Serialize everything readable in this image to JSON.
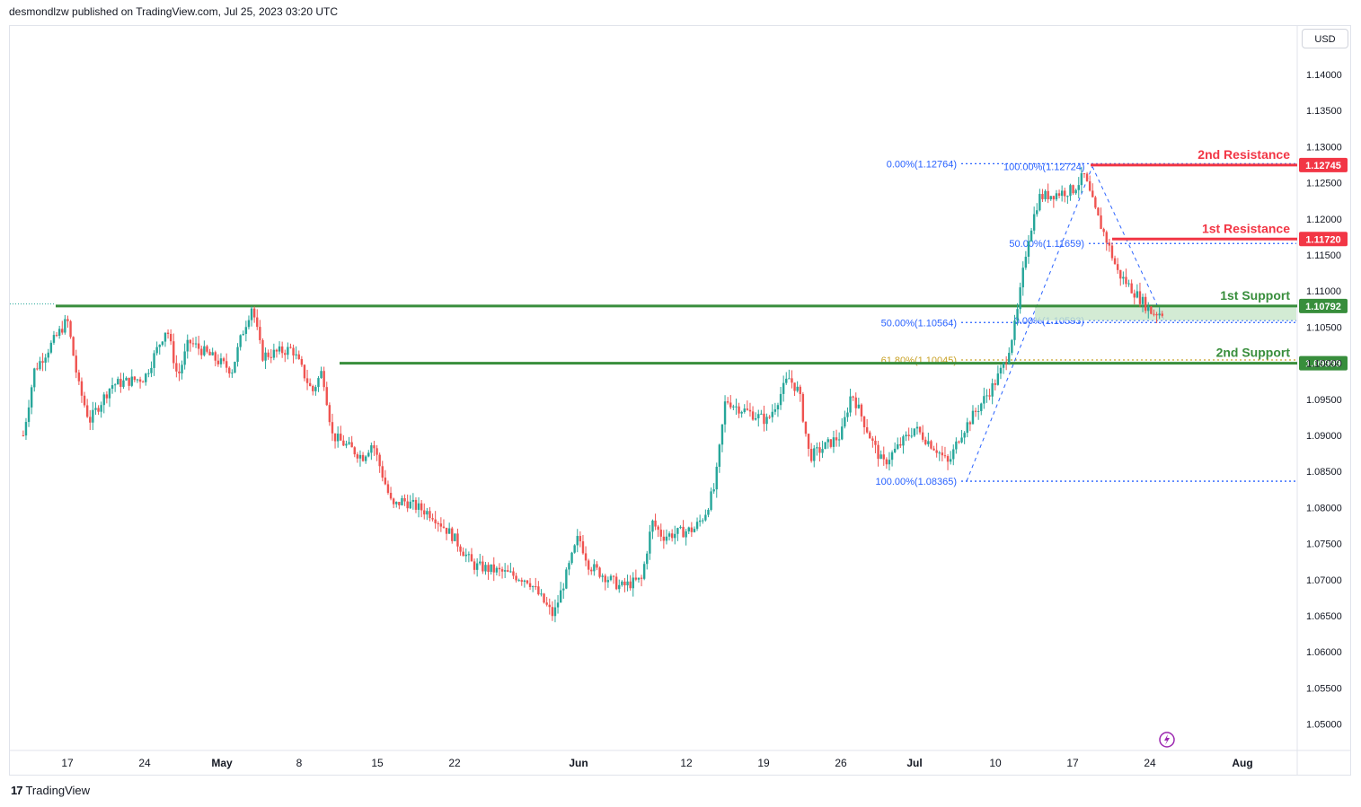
{
  "header": {
    "published": "desmondlzw published on TradingView.com, Jul 25, 2023 03:20 UTC"
  },
  "currency": "USD",
  "footer": {
    "brand": "TradingView",
    "logo_glyph": "17"
  },
  "colors": {
    "up": "#26a69a",
    "down": "#ef5350",
    "support": "#388e3c",
    "resistance": "#f23645",
    "fib": "#2962ff",
    "fib_gold": "#c9a227",
    "zone": "#c8e6c9"
  },
  "chart_data": {
    "type": "candlestick",
    "y_axis": {
      "min": 1.045,
      "max": 1.145,
      "ticks": [
        "1.14000",
        "1.13500",
        "1.13000",
        "1.12500",
        "1.12000",
        "1.11500",
        "1.11000",
        "1.10500",
        "1.10000",
        "1.09500",
        "1.09000",
        "1.08500",
        "1.08000",
        "1.07500",
        "1.07000",
        "1.06500",
        "1.06000",
        "1.05500",
        "1.05000"
      ]
    },
    "x_axis": {
      "ticks": [
        "17",
        "24",
        "May",
        "8",
        "15",
        "22",
        "Jun",
        "12",
        "19",
        "26",
        "Jul",
        "10",
        "17",
        "24",
        "Aug"
      ]
    },
    "price_path": [
      {
        "date": "Apr 13",
        "price": 1.09
      },
      {
        "date": "Apr 14",
        "price": 1.099
      },
      {
        "date": "Apr 17",
        "price": 1.106
      },
      {
        "date": "Apr 18",
        "price": 1.097
      },
      {
        "date": "Apr 19",
        "price": 1.092
      },
      {
        "date": "Apr 21",
        "price": 1.097
      },
      {
        "date": "Apr 24",
        "price": 1.098
      },
      {
        "date": "Apr 26",
        "price": 1.105
      },
      {
        "date": "Apr 27",
        "price": 1.098
      },
      {
        "date": "Apr 28",
        "price": 1.103
      },
      {
        "date": "May 2",
        "price": 1.099
      },
      {
        "date": "May 3",
        "price": 1.104
      },
      {
        "date": "May 4",
        "price": 1.108
      },
      {
        "date": "May 5",
        "price": 1.101
      },
      {
        "date": "May 8",
        "price": 1.102
      },
      {
        "date": "May 10",
        "price": 1.096
      },
      {
        "date": "May 11",
        "price": 1.099
      },
      {
        "date": "May 12",
        "price": 1.09
      },
      {
        "date": "May 15",
        "price": 1.087
      },
      {
        "date": "May 16",
        "price": 1.089
      },
      {
        "date": "May 18",
        "price": 1.08
      },
      {
        "date": "May 19",
        "price": 1.081
      },
      {
        "date": "May 22",
        "price": 1.079
      },
      {
        "date": "May 24",
        "price": 1.076
      },
      {
        "date": "May 26",
        "price": 1.072
      },
      {
        "date": "May 29",
        "price": 1.071
      },
      {
        "date": "May 30",
        "price": 1.07
      },
      {
        "date": "May 31",
        "price": 1.065
      },
      {
        "date": "Jun 1",
        "price": 1.076
      },
      {
        "date": "Jun 2",
        "price": 1.072
      },
      {
        "date": "Jun 5",
        "price": 1.069
      },
      {
        "date": "Jun 7",
        "price": 1.07
      },
      {
        "date": "Jun 8",
        "price": 1.078
      },
      {
        "date": "Jun 9",
        "price": 1.076
      },
      {
        "date": "Jun 12",
        "price": 1.077
      },
      {
        "date": "Jun 13",
        "price": 1.079
      },
      {
        "date": "Jun 14",
        "price": 1.083
      },
      {
        "date": "Jun 15",
        "price": 1.095
      },
      {
        "date": "Jun 16",
        "price": 1.094
      },
      {
        "date": "Jun 19",
        "price": 1.092
      },
      {
        "date": "Jun 21",
        "price": 1.098
      },
      {
        "date": "Jun 22",
        "price": 1.096
      },
      {
        "date": "Jun 23",
        "price": 1.087
      },
      {
        "date": "Jun 26",
        "price": 1.09
      },
      {
        "date": "Jun 27",
        "price": 1.096
      },
      {
        "date": "Jun 29",
        "price": 1.089
      },
      {
        "date": "Jun 30",
        "price": 1.086
      },
      {
        "date": "Jul 3",
        "price": 1.091
      },
      {
        "date": "Jul 5",
        "price": 1.088
      },
      {
        "date": "Jul 6",
        "price": 1.086
      },
      {
        "date": "Jul 7",
        "price": 1.09
      },
      {
        "date": "Jul 10",
        "price": 1.097
      },
      {
        "date": "Jul 11",
        "price": 1.1
      },
      {
        "date": "Jul 12",
        "price": 1.106
      },
      {
        "date": "Jul 13",
        "price": 1.117
      },
      {
        "date": "Jul 14",
        "price": 1.123
      },
      {
        "date": "Jul 17",
        "price": 1.124
      },
      {
        "date": "Jul 18",
        "price": 1.126
      },
      {
        "date": "Jul 19",
        "price": 1.121
      },
      {
        "date": "Jul 20",
        "price": 1.117
      },
      {
        "date": "Jul 21",
        "price": 1.1125
      },
      {
        "date": "Jul 24",
        "price": 1.107
      },
      {
        "date": "Jul 25",
        "price": 1.107
      }
    ],
    "levels": [
      {
        "name": "2nd Resistance",
        "value": 1.12745,
        "price_label": "1.12745",
        "kind": "resistance"
      },
      {
        "name": "1st Resistance",
        "value": 1.1172,
        "price_label": "1.11720",
        "kind": "resistance"
      },
      {
        "name": "1st Support",
        "value": 1.10792,
        "price_label": "1.10792",
        "kind": "support"
      },
      {
        "name": "2nd Support",
        "value": 1.09999,
        "price_label": "1.09999",
        "kind": "support"
      }
    ],
    "fib_labels": [
      {
        "text": "0.00%(1.12764)",
        "value": 1.12764
      },
      {
        "text": "100.00%(1.12724)",
        "value": 1.12724
      },
      {
        "text": "50.00%(1.11659)",
        "value": 1.11659
      },
      {
        "text": "50.00%(1.10564)",
        "value": 1.10564
      },
      {
        "text": "0.00%(1.10593)",
        "value": 1.10593
      },
      {
        "text": "61.80%(1.10045)",
        "value": 1.10045
      },
      {
        "text": "100.00%(1.08365)",
        "value": 1.08365
      }
    ]
  }
}
